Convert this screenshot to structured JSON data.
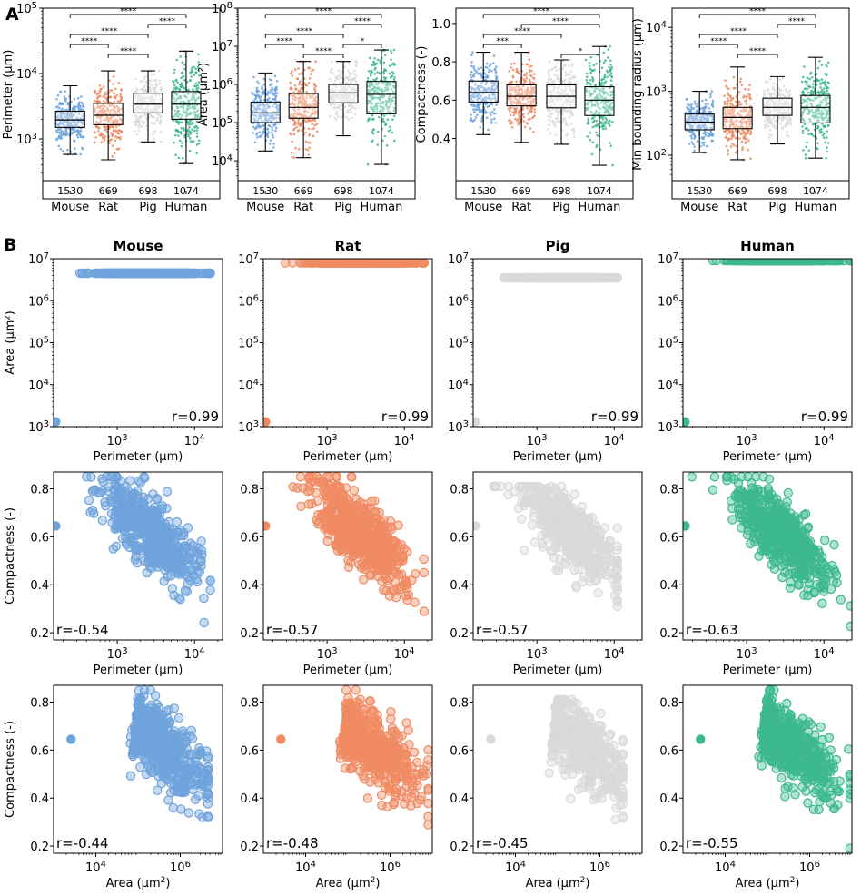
{
  "panel_labels": [
    "A",
    "B"
  ],
  "colors": {
    "Mouse": "#6fa3dc",
    "Rat": "#ef8a62",
    "Pig": "#d9d9d9",
    "Human": "#3db890"
  },
  "chart_data": [
    {
      "type": "box",
      "panel": "A",
      "title": "",
      "ylabel": "Perimeter (µm)",
      "scale": "log",
      "ylim": [
        230,
        100000
      ],
      "yticks": [
        {
          "v": 1000,
          "e": "3"
        },
        {
          "v": 10000,
          "e": "4"
        },
        {
          "v": 100000,
          "e": "5"
        }
      ],
      "categories": [
        "Mouse",
        "Rat",
        "Pig",
        "Human"
      ],
      "counts": [
        "1530",
        "669",
        "698",
        "1074"
      ],
      "boxes": [
        {
          "q1": 1500,
          "med": 1950,
          "q3": 2650,
          "wlo": 580,
          "whi": 6500
        },
        {
          "q1": 1650,
          "med": 2300,
          "q3": 3500,
          "wlo": 480,
          "whi": 11000
        },
        {
          "q1": 2500,
          "med": 3400,
          "q3": 5000,
          "wlo": 900,
          "whi": 11000
        },
        {
          "q1": 2000,
          "med": 3400,
          "q3": 5300,
          "wlo": 420,
          "whi": 22000
        }
      ],
      "signif": [
        {
          "a": 0,
          "b": 3,
          "label": "****"
        },
        {
          "a": 2,
          "b": 3,
          "label": "****"
        },
        {
          "a": 0,
          "b": 2,
          "label": "****"
        },
        {
          "a": 0,
          "b": 1,
          "label": "****"
        },
        {
          "a": 1,
          "b": 2,
          "label": "****"
        }
      ]
    },
    {
      "type": "box",
      "panel": "A",
      "title": "",
      "ylabel": "Area (µm²)",
      "scale": "log",
      "ylim": [
        3000,
        100000000
      ],
      "yticks": [
        {
          "v": 10000,
          "e": "4"
        },
        {
          "v": 100000,
          "e": "5"
        },
        {
          "v": 1000000,
          "e": "6"
        },
        {
          "v": 10000000,
          "e": "7"
        },
        {
          "v": 100000000,
          "e": "8"
        }
      ],
      "categories": [
        "Mouse",
        "Rat",
        "Pig",
        "Human"
      ],
      "counts": [
        "1530",
        "669",
        "698",
        "1074"
      ],
      "boxes": [
        {
          "q1": 100000,
          "med": 180000,
          "q3": 340000,
          "wlo": 18000,
          "whi": 2000000
        },
        {
          "q1": 130000,
          "med": 250000,
          "q3": 580000,
          "wlo": 12000,
          "whi": 4000000
        },
        {
          "q1": 330000,
          "med": 600000,
          "q3": 1000000,
          "wlo": 45000,
          "whi": 4000000
        },
        {
          "q1": 170000,
          "med": 550000,
          "q3": 1200000,
          "wlo": 8000,
          "whi": 8000000
        }
      ],
      "signif": [
        {
          "a": 0,
          "b": 3,
          "label": "****"
        },
        {
          "a": 2,
          "b": 3,
          "label": "****"
        },
        {
          "a": 0,
          "b": 2,
          "label": "****"
        },
        {
          "a": 0,
          "b": 1,
          "label": "****"
        },
        {
          "a": 1,
          "b": 2,
          "label": "****"
        },
        {
          "a": 2,
          "b": 3,
          "label": "*"
        }
      ]
    },
    {
      "type": "box",
      "panel": "A",
      "title": "",
      "ylabel": "Compactness (-)",
      "scale": "linear",
      "ylim": [
        0.18,
        1.08
      ],
      "yticks": [
        {
          "v": 0.4,
          "t": "0.4"
        },
        {
          "v": 0.6,
          "t": "0.6"
        },
        {
          "v": 0.8,
          "t": "0.8"
        },
        {
          "v": 1.0,
          "t": "1.0"
        }
      ],
      "categories": [
        "Mouse",
        "Rat",
        "Pig",
        "Human"
      ],
      "counts": [
        "1530",
        "669",
        "698",
        "1074"
      ],
      "boxes": [
        {
          "q1": 0.59,
          "med": 0.64,
          "q3": 0.7,
          "wlo": 0.42,
          "whi": 0.85
        },
        {
          "q1": 0.57,
          "med": 0.62,
          "q3": 0.68,
          "wlo": 0.38,
          "whi": 0.85
        },
        {
          "q1": 0.56,
          "med": 0.62,
          "q3": 0.68,
          "wlo": 0.37,
          "whi": 0.81
        },
        {
          "q1": 0.52,
          "med": 0.6,
          "q3": 0.67,
          "wlo": 0.26,
          "whi": 0.88
        }
      ],
      "signif": [
        {
          "a": 0,
          "b": 3,
          "label": "****"
        },
        {
          "a": 1,
          "b": 3,
          "label": "****"
        },
        {
          "a": 0,
          "b": 2,
          "label": "****"
        },
        {
          "a": 0,
          "b": 1,
          "label": "***"
        },
        {
          "a": 2,
          "b": 3,
          "label": "*"
        }
      ]
    },
    {
      "type": "box",
      "panel": "A",
      "title": "",
      "ylabel": "Min bounding radius (µm)",
      "scale": "log",
      "ylim": [
        40,
        20000
      ],
      "yticks": [
        {
          "v": 100,
          "e": "2"
        },
        {
          "v": 1000,
          "e": "3"
        },
        {
          "v": 10000,
          "e": "4"
        }
      ],
      "categories": [
        "Mouse",
        "Rat",
        "Pig",
        "Human"
      ],
      "counts": [
        "1530",
        "669",
        "698",
        "1074"
      ],
      "boxes": [
        {
          "q1": 250,
          "med": 330,
          "q3": 440,
          "wlo": 110,
          "whi": 1000
        },
        {
          "q1": 260,
          "med": 390,
          "q3": 560,
          "wlo": 85,
          "whi": 2400
        },
        {
          "q1": 420,
          "med": 560,
          "q3": 780,
          "wlo": 150,
          "whi": 1700
        },
        {
          "q1": 320,
          "med": 560,
          "q3": 860,
          "wlo": 90,
          "whi": 3400
        }
      ],
      "signif": [
        {
          "a": 0,
          "b": 3,
          "label": "****"
        },
        {
          "a": 2,
          "b": 3,
          "label": "****"
        },
        {
          "a": 0,
          "b": 2,
          "label": "****"
        },
        {
          "a": 0,
          "b": 1,
          "label": "****"
        },
        {
          "a": 1,
          "b": 2,
          "label": "****"
        }
      ]
    },
    {
      "type": "scatter",
      "panel": "B",
      "title": "Mouse",
      "species": "Mouse",
      "xlabel": "Perimeter (µm)",
      "ylabel": "Area (µm²)",
      "r": "r=0.99",
      "x_range": [
        160,
        16000
      ],
      "y_range": [
        1300,
        4500000
      ],
      "relation": "area_vs_perimeter"
    },
    {
      "type": "scatter",
      "panel": "B",
      "title": "Rat",
      "species": "Rat",
      "xlabel": "Perimeter (µm)",
      "ylabel": "",
      "r": "r=0.99",
      "x_range": [
        160,
        18000
      ],
      "y_range": [
        1300,
        8000000
      ],
      "relation": "area_vs_perimeter"
    },
    {
      "type": "scatter",
      "panel": "B",
      "title": "Pig",
      "species": "Pig",
      "xlabel": "Perimeter (µm)",
      "ylabel": "",
      "r": "r=0.99",
      "x_range": [
        160,
        11000
      ],
      "y_range": [
        1300,
        3500000
      ],
      "relation": "area_vs_perimeter"
    },
    {
      "type": "scatter",
      "panel": "B",
      "title": "Human",
      "species": "Human",
      "xlabel": "Perimeter (µm)",
      "ylabel": "",
      "r": "r=0.99",
      "x_range": [
        160,
        22000
      ],
      "y_range": [
        1300,
        9000000
      ],
      "relation": "area_vs_perimeter"
    },
    {
      "type": "scatter",
      "panel": "B",
      "species": "Mouse",
      "xlabel": "Perimeter (µm)",
      "ylabel": "Compactness (-)",
      "r": "r=-0.54",
      "x_range": [
        160,
        16000
      ],
      "y_range": [
        0.19,
        0.85
      ],
      "relation": "compactness_vs_perimeter"
    },
    {
      "type": "scatter",
      "panel": "B",
      "species": "Rat",
      "xlabel": "Perimeter (µm)",
      "ylabel": "",
      "r": "r=-0.57",
      "x_range": [
        160,
        18000
      ],
      "y_range": [
        0.19,
        0.85
      ],
      "relation": "compactness_vs_perimeter"
    },
    {
      "type": "scatter",
      "panel": "B",
      "species": "Pig",
      "xlabel": "Perimeter (µm)",
      "ylabel": "",
      "r": "r=-0.57",
      "x_range": [
        160,
        11000
      ],
      "y_range": [
        0.31,
        0.81
      ],
      "relation": "compactness_vs_perimeter"
    },
    {
      "type": "scatter",
      "panel": "B",
      "species": "Human",
      "xlabel": "Perimeter (µm)",
      "ylabel": "",
      "r": "r=-0.63",
      "x_range": [
        160,
        22000
      ],
      "y_range": [
        0.19,
        0.85
      ],
      "relation": "compactness_vs_perimeter"
    },
    {
      "type": "scatter",
      "panel": "B",
      "species": "Mouse",
      "xlabel": "Area (µm²)",
      "ylabel": "Compactness (-)",
      "r": "r=-0.44",
      "x_range": [
        1300,
        4500000
      ],
      "y_range": [
        0.19,
        0.85
      ],
      "relation": "compactness_vs_area"
    },
    {
      "type": "scatter",
      "panel": "B",
      "species": "Rat",
      "xlabel": "Area (µm²)",
      "ylabel": "",
      "r": "r=-0.48",
      "x_range": [
        1300,
        8000000
      ],
      "y_range": [
        0.19,
        0.85
      ],
      "relation": "compactness_vs_area"
    },
    {
      "type": "scatter",
      "panel": "B",
      "species": "Pig",
      "xlabel": "Area (µm²)",
      "ylabel": "",
      "r": "r=-0.45",
      "x_range": [
        1300,
        3500000
      ],
      "y_range": [
        0.31,
        0.81
      ],
      "relation": "compactness_vs_area"
    },
    {
      "type": "scatter",
      "panel": "B",
      "species": "Human",
      "xlabel": "Area (µm²)",
      "ylabel": "",
      "r": "r=-0.55",
      "x_range": [
        1300,
        9000000
      ],
      "y_range": [
        0.19,
        0.85
      ],
      "relation": "compactness_vs_area"
    }
  ]
}
